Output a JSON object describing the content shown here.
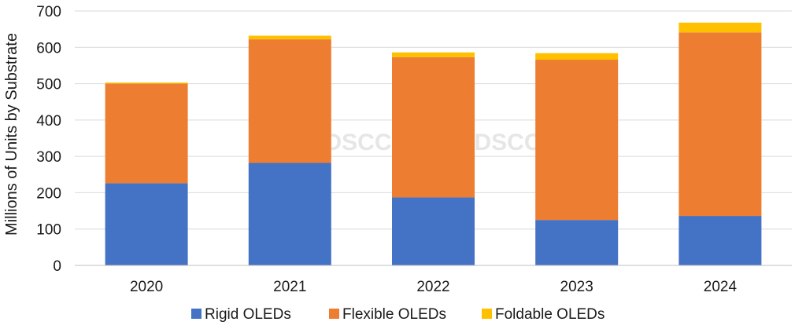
{
  "chart_data": {
    "type": "bar",
    "stacked": true,
    "categories": [
      "2020",
      "2021",
      "2022",
      "2023",
      "2024"
    ],
    "series": [
      {
        "name": "Rigid OLEDs",
        "color": "#4472C4",
        "values": [
          226,
          282,
          187,
          125,
          136
        ]
      },
      {
        "name": "Flexible OLEDs",
        "color": "#ED7D31",
        "values": [
          274,
          340,
          386,
          441,
          505
        ]
      },
      {
        "name": "Foldable OLEDs",
        "color": "#FFC000",
        "values": [
          3,
          10,
          13,
          18,
          27
        ]
      }
    ],
    "title": "",
    "xlabel": "",
    "ylabel": "Millions of Units by Substrate",
    "ylim": [
      0,
      700
    ],
    "yticks": [
      0,
      100,
      200,
      300,
      400,
      500,
      600,
      700
    ],
    "grid": true,
    "legend_position": "bottom",
    "watermarks": [
      "DSCC",
      "DSCC"
    ]
  }
}
